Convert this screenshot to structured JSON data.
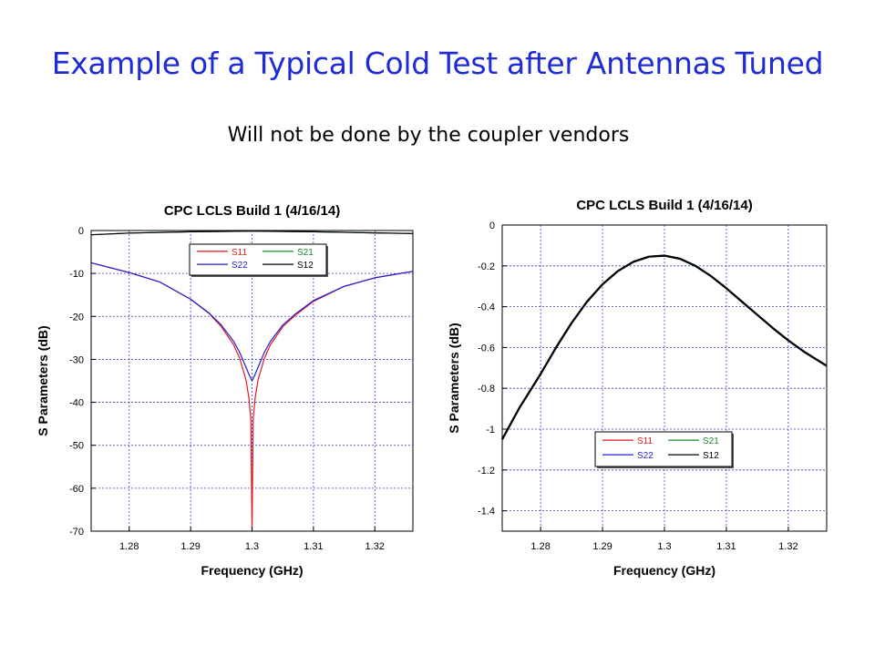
{
  "slide": {
    "title": "Example of a Typical Cold Test after Antennas Tuned",
    "subtitle": "Will not be done by the coupler vendors"
  },
  "colors": {
    "S11": "#e31a1c",
    "S22": "#1f1fd6",
    "S21": "#1a8c2a",
    "S12": "#000000",
    "title": "#1f2bd6",
    "grid": "#3b3bd8"
  },
  "chart_data": [
    {
      "type": "line",
      "title": "CPC LCLS Build 1 (4/16/14)",
      "xlabel": "Frequency (GHz)",
      "ylabel": "S Parameters (dB)",
      "xlim": [
        1.2738,
        1.3262
      ],
      "ylim": [
        -70,
        0
      ],
      "xticks": [
        1.28,
        1.29,
        1.3,
        1.31,
        1.32
      ],
      "xtick_labels": [
        "1.28",
        "1.29",
        "1.3",
        "1.31",
        "1.32"
      ],
      "yticks": [
        0,
        -10,
        -20,
        -30,
        -40,
        -50,
        -60,
        -70
      ],
      "ytick_labels": [
        "0",
        "-10",
        "-20",
        "-30",
        "-40",
        "-50",
        "-60",
        "-70"
      ],
      "grid": true,
      "legend": {
        "placement": "top-center",
        "entries": [
          "S11",
          "S22",
          "S21",
          "S12"
        ]
      },
      "series": [
        {
          "name": "S11",
          "x": [
            1.2738,
            1.28,
            1.285,
            1.29,
            1.293,
            1.295,
            1.297,
            1.298,
            1.299,
            1.2995,
            1.2998,
            1.3,
            1.3002,
            1.3005,
            1.301,
            1.302,
            1.303,
            1.305,
            1.307,
            1.31,
            1.315,
            1.32,
            1.3262
          ],
          "y": [
            -7.5,
            -9.8,
            -12.0,
            -16.0,
            -19.3,
            -22.4,
            -26.6,
            -29.8,
            -34.7,
            -39.0,
            -44.0,
            -70.0,
            -44.0,
            -39.0,
            -34.7,
            -29.8,
            -26.6,
            -22.4,
            -19.8,
            -16.5,
            -13.0,
            -11.0,
            -9.5
          ]
        },
        {
          "name": "S22",
          "x": [
            1.2738,
            1.28,
            1.285,
            1.29,
            1.293,
            1.295,
            1.297,
            1.298,
            1.299,
            1.2995,
            1.3,
            1.3005,
            1.301,
            1.302,
            1.303,
            1.305,
            1.307,
            1.31,
            1.315,
            1.32,
            1.3262
          ],
          "y": [
            -7.5,
            -9.8,
            -12.0,
            -16.0,
            -19.2,
            -22.0,
            -25.8,
            -28.4,
            -31.8,
            -33.5,
            -35.0,
            -33.5,
            -31.8,
            -28.4,
            -25.8,
            -22.0,
            -19.5,
            -16.3,
            -13.0,
            -11.0,
            -9.5
          ]
        },
        {
          "name": "S21",
          "x": [
            1.2738,
            1.28,
            1.29,
            1.3,
            1.31,
            1.32,
            1.3262
          ],
          "y": [
            -1.0,
            -0.6,
            -0.3,
            -0.15,
            -0.3,
            -0.55,
            -0.7
          ]
        },
        {
          "name": "S12",
          "x": [
            1.2738,
            1.28,
            1.29,
            1.3,
            1.31,
            1.32,
            1.3262
          ],
          "y": [
            -1.0,
            -0.6,
            -0.3,
            -0.15,
            -0.3,
            -0.55,
            -0.7
          ]
        }
      ]
    },
    {
      "type": "line",
      "title": "CPC LCLS Build 1 (4/16/14)",
      "xlabel": "Frequency (GHz)",
      "ylabel": "S Parameters (dB)",
      "xlim": [
        1.2738,
        1.3262
      ],
      "ylim": [
        -1.5,
        0
      ],
      "xticks": [
        1.28,
        1.29,
        1.3,
        1.31,
        1.32
      ],
      "xtick_labels": [
        "1.28",
        "1.29",
        "1.3",
        "1.31",
        "1.32"
      ],
      "yticks": [
        0,
        -0.2,
        -0.4,
        -0.6,
        -0.8,
        -1.0,
        -1.2,
        -1.4
      ],
      "ytick_labels": [
        "0",
        "-0.2",
        "-0.4",
        "-0.6",
        "-0.8",
        "-1",
        "-1.2",
        "-1.4"
      ],
      "grid": true,
      "legend": {
        "placement": "bottom-center",
        "entries": [
          "S11",
          "S22",
          "S21",
          "S12"
        ]
      },
      "series": [
        {
          "name": "S21",
          "x": [
            1.2738,
            1.2765,
            1.28,
            1.2825,
            1.285,
            1.2875,
            1.29,
            1.2925,
            1.295,
            1.2975,
            1.3,
            1.3025,
            1.305,
            1.3075,
            1.31,
            1.3125,
            1.315,
            1.3175,
            1.32,
            1.3225,
            1.3262
          ],
          "y": [
            -1.05,
            -0.9,
            -0.73,
            -0.6,
            -0.48,
            -0.375,
            -0.29,
            -0.225,
            -0.18,
            -0.155,
            -0.15,
            -0.165,
            -0.2,
            -0.25,
            -0.31,
            -0.375,
            -0.44,
            -0.505,
            -0.565,
            -0.62,
            -0.69
          ]
        },
        {
          "name": "S12",
          "x": [
            1.2738,
            1.2765,
            1.28,
            1.2825,
            1.285,
            1.2875,
            1.29,
            1.2925,
            1.295,
            1.2975,
            1.3,
            1.3025,
            1.305,
            1.3075,
            1.31,
            1.3125,
            1.315,
            1.3175,
            1.32,
            1.3225,
            1.3262
          ],
          "y": [
            -1.05,
            -0.9,
            -0.73,
            -0.6,
            -0.48,
            -0.375,
            -0.29,
            -0.225,
            -0.18,
            -0.155,
            -0.15,
            -0.165,
            -0.2,
            -0.25,
            -0.31,
            -0.375,
            -0.44,
            -0.505,
            -0.565,
            -0.62,
            -0.69
          ]
        }
      ]
    }
  ]
}
